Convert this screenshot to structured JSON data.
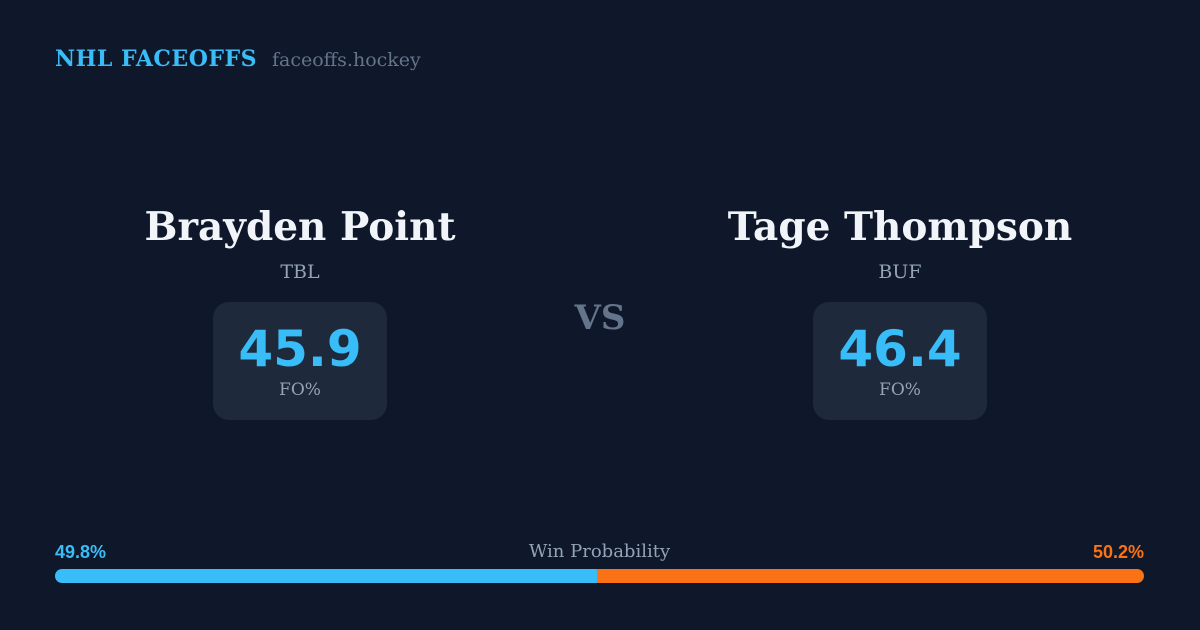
{
  "header": {
    "title": "NHL FACEOFFS",
    "site": "faceoffs.hockey"
  },
  "players": [
    {
      "name": "Brayden Point",
      "team": "TBL",
      "stat_value": "45.9",
      "stat_label": "FO%"
    },
    {
      "name": "Tage Thompson",
      "team": "BUF",
      "stat_value": "46.4",
      "stat_label": "FO%"
    }
  ],
  "vs_label": "VS",
  "win_probability": {
    "label": "Win Probability",
    "left_pct_label": "49.8%",
    "right_pct_label": "50.2%",
    "left_value": 49.8,
    "right_value": 50.2
  },
  "chart_data": {
    "type": "bar",
    "title": "Win Probability",
    "layout": "single horizontal stacked bar",
    "categories": [
      "Brayden Point (TBL)",
      "Tage Thompson (BUF)"
    ],
    "values": [
      49.8,
      50.2
    ],
    "units": "%",
    "bar_colors": [
      "#38bdf8",
      "#f97316"
    ],
    "faceoff_pct": [
      45.9,
      46.4
    ]
  },
  "colors": {
    "bg": "#0f172a",
    "panel": "#1e293b",
    "blue": "#38bdf8",
    "orange": "#f97316",
    "white": "#f1f5f9",
    "gray": "#94a3b8",
    "gray_dim": "#64748b"
  }
}
